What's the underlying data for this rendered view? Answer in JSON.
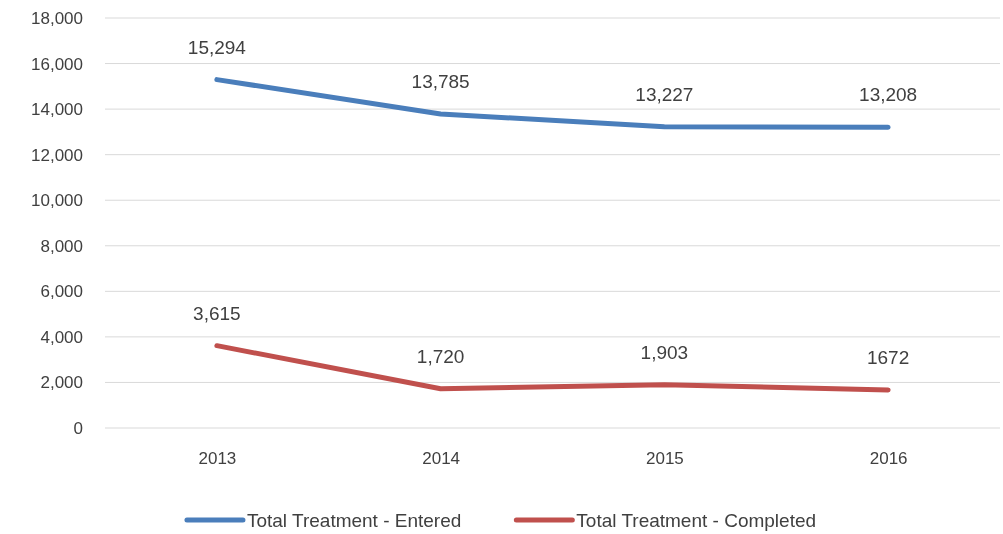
{
  "chart_data": {
    "type": "line",
    "categories": [
      "2013",
      "2014",
      "2015",
      "2016"
    ],
    "series": [
      {
        "name": "Total Treatment - Entered",
        "color": "#4a7ebb",
        "values": [
          15294,
          13785,
          13227,
          13208
        ],
        "value_labels": [
          "15,294",
          "13,785",
          "13,227",
          "13,208"
        ]
      },
      {
        "name": "Total Treatment - Completed",
        "color": "#c0504d",
        "values": [
          3615,
          1720,
          1903,
          1672
        ],
        "value_labels": [
          "3,615",
          "1,720",
          "1,903",
          "1672"
        ]
      }
    ],
    "ylim": [
      0,
      18000
    ],
    "yticks": [
      {
        "value": 0,
        "label": "0"
      },
      {
        "value": 2000,
        "label": "2,000"
      },
      {
        "value": 4000,
        "label": "4,000"
      },
      {
        "value": 6000,
        "label": "6,000"
      },
      {
        "value": 8000,
        "label": "8,000"
      },
      {
        "value": 10000,
        "label": "10,000"
      },
      {
        "value": 12000,
        "label": "12,000"
      },
      {
        "value": 14000,
        "label": "14,000"
      },
      {
        "value": 16000,
        "label": "16,000"
      },
      {
        "value": 18000,
        "label": "18,000"
      }
    ],
    "grid": "y",
    "legend": "bottom",
    "marker": "none",
    "line_style": "solid"
  }
}
